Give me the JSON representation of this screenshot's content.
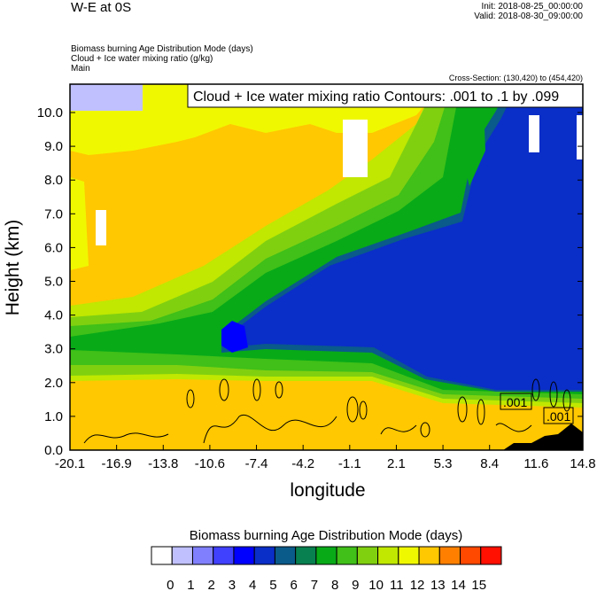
{
  "header": {
    "title": "W-E at 0S",
    "init": "Init: 2018-08-25_00:00:00",
    "valid": "Valid: 2018-08-30_09:00:00",
    "subtitles": [
      "Biomass burning Age Distribution Mode   (days)",
      "Cloud + Ice water mixing ratio   (g/kg)",
      "Main"
    ],
    "cross_section": "Cross-Section: (130,420) to (454,420)"
  },
  "chart_data": {
    "type": "heatmap",
    "title": "Cloud + Ice water mixing ratio Contours: .001 to .1 by .099",
    "xlabel": "longitude",
    "ylabel": "Height (km)",
    "xlim": [
      -20.1,
      14.8
    ],
    "ylim": [
      0,
      10.8
    ],
    "xticks": [
      "-20.1",
      "-16.9",
      "-13.8",
      "-10.6",
      "-7.4",
      "-4.2",
      "-1.1",
      "2.1",
      "5.3",
      "8.4",
      "11.6",
      "14.8"
    ],
    "yticks": [
      "0.0",
      "1.0",
      "2.0",
      "3.0",
      "4.0",
      "5.0",
      "6.0",
      "7.0",
      "8.0",
      "9.0",
      "10.0"
    ],
    "contour_labels": [
      ".001",
      ".001"
    ],
    "colorbar": {
      "title": "Biomass burning Age Distribution Mode  (days)",
      "labels": [
        "0",
        "1",
        "2",
        "3",
        "4",
        "5",
        "6",
        "7",
        "8",
        "9",
        "10",
        "11",
        "12",
        "13",
        "14",
        "15"
      ],
      "colors": [
        "#ffffff",
        "#c0c0ff",
        "#8080ff",
        "#4040ff",
        "#0000ff",
        "#0a2ec8",
        "#0a5a8a",
        "#088050",
        "#08aa18",
        "#40c018",
        "#80d010",
        "#c0e800",
        "#f0f800",
        "#ffc800",
        "#ff8000",
        "#ff4800",
        "#ff1000"
      ]
    }
  }
}
